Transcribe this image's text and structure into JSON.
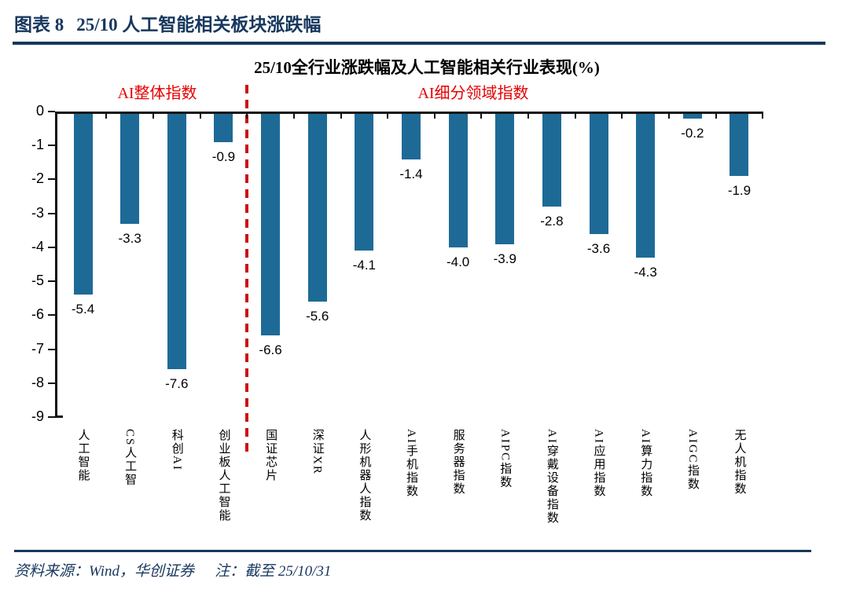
{
  "header": {
    "label": "图表 8",
    "title": "25/10 人工智能相关板块涨跌幅"
  },
  "chart_data": {
    "type": "bar",
    "title": "25/10全行业涨跌幅及人工智能相关行业表现(%)",
    "categories": [
      "人工智能",
      "CS人工智",
      "科创AI",
      "创业板人工智能",
      "国证芯片",
      "深证XR",
      "人形机器人指数",
      "AI手机指数",
      "服务器指数",
      "AIPC指数",
      "AI穿戴设备指数",
      "AI应用指数",
      "AI算力指数",
      "AIGC指数",
      "无人机指数"
    ],
    "values": [
      -5.4,
      -3.3,
      -7.6,
      -0.9,
      -6.6,
      -5.6,
      -4.1,
      -1.4,
      -4.0,
      -3.9,
      -2.8,
      -3.6,
      -4.3,
      -0.2,
      -1.9
    ],
    "value_labels": [
      "-5.4",
      "-3.3",
      "-7.6",
      "-0.9",
      "-6.6",
      "-5.6",
      "-4.1",
      "-1.4",
      "-4.0",
      "-3.9",
      "-2.8",
      "-3.6",
      "-4.3",
      "-0.2",
      "-1.9"
    ],
    "xlabel": "",
    "ylabel": "",
    "ylim": [
      -9,
      0
    ],
    "yticks": [
      0,
      -1,
      -2,
      -3,
      -4,
      -5,
      -6,
      -7,
      -8,
      -9
    ],
    "grid": false,
    "legend_position": "none",
    "sections": [
      {
        "label": "AI整体指数",
        "categories_span": [
          0,
          3
        ]
      },
      {
        "label": "AI细分领域指数",
        "categories_span": [
          4,
          14
        ]
      }
    ],
    "divider_after_index": 3,
    "colors": {
      "bar": "#1E6A96",
      "section_label": "#E60000",
      "divider": "#CC1111",
      "axis": "#111111"
    }
  },
  "footer": {
    "source": "资料来源：Wind，华创证券",
    "note": "注：截至 25/10/31"
  },
  "theme": {
    "accent_navy": "#17375E"
  }
}
